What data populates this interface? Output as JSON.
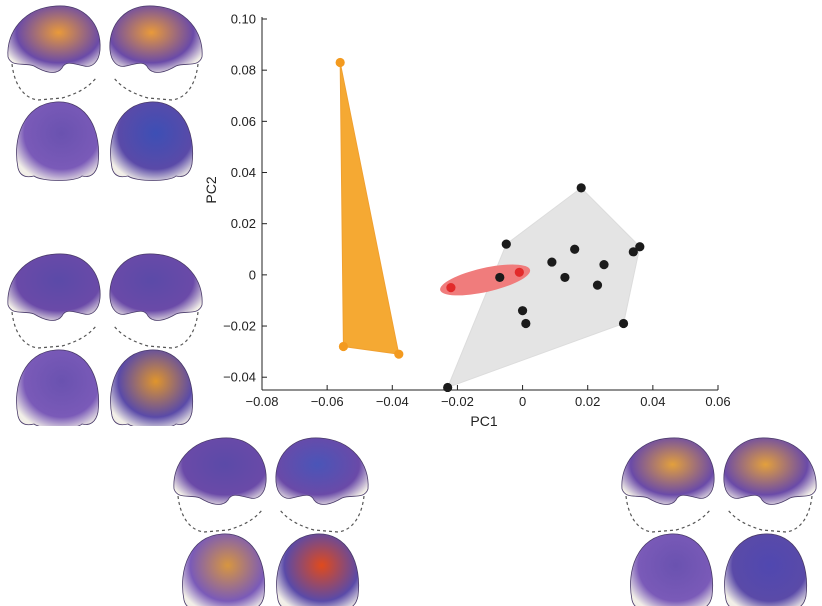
{
  "chart_data": {
    "type": "scatter",
    "title": "",
    "xlabel": "PC1",
    "ylabel": "PC2",
    "xlim": [
      -0.08,
      0.06
    ],
    "ylim": [
      -0.045,
      0.1
    ],
    "xticks": [
      "−0.08",
      "−0.06",
      "−0.04",
      "−0.02",
      "0",
      "0.02",
      "0.04",
      "0.06"
    ],
    "xtick_values": [
      -0.08,
      -0.06,
      -0.04,
      -0.02,
      0,
      0.02,
      0.04,
      0.06
    ],
    "yticks": [
      "−0.04",
      "−0.02",
      "0",
      "0.02",
      "0.04",
      "0.06",
      "0.08",
      "0.10"
    ],
    "ytick_values": [
      -0.04,
      -0.02,
      0,
      0.02,
      0.04,
      0.06,
      0.08,
      0.1
    ],
    "grid": false,
    "groups": [
      {
        "color": "#f0a431",
        "hull": "convex-hull",
        "points": [
          [
            -0.056,
            0.083
          ],
          [
            -0.055,
            -0.028
          ],
          [
            -0.038,
            -0.031
          ]
        ]
      },
      {
        "color": "#e4e4e4",
        "hull": "convex-hull",
        "points": [
          [
            -0.023,
            -0.044
          ],
          [
            -0.005,
            0.012
          ],
          [
            -0.007,
            -0.001
          ],
          [
            0.0,
            -0.014
          ],
          [
            0.001,
            -0.019
          ],
          [
            0.009,
            0.005
          ],
          [
            0.013,
            -0.001
          ],
          [
            0.016,
            0.01
          ],
          [
            0.018,
            0.034
          ],
          [
            0.023,
            -0.004
          ],
          [
            0.025,
            0.004
          ],
          [
            0.031,
            -0.019
          ],
          [
            0.034,
            0.009
          ],
          [
            0.036,
            0.011
          ]
        ]
      },
      {
        "color": "#ef7474",
        "hull": "ellipse",
        "points": [
          [
            -0.022,
            -0.005
          ],
          [
            -0.001,
            0.001
          ]
        ]
      }
    ]
  },
  "colors": {
    "orange_group": "#f5a933",
    "orange_point": "#f39a1f",
    "gray_group": "#e4e4e4",
    "black_point": "#1b1b1b",
    "red_group": "#f07c7c",
    "red_point": "#e22a2a"
  },
  "specimen_panels": [
    {
      "position": "top-left",
      "skull_colors": [
        "#e99a3a",
        "#e99a3a",
        "#6a52b0",
        "#3d4fb5"
      ]
    },
    {
      "position": "middle-left",
      "skull_colors": [
        "#5b4aa8",
        "#5b4aa8",
        "#6a52b0",
        "#e0952c"
      ]
    },
    {
      "position": "bottom-center",
      "skull_colors": [
        "#5b4aa8",
        "#4a55b8",
        "#d79640",
        "#e04a1c"
      ]
    },
    {
      "position": "bottom-right",
      "skull_colors": [
        "#e3a03c",
        "#e3a03c",
        "#6a52b0",
        "#5048b0"
      ]
    }
  ]
}
